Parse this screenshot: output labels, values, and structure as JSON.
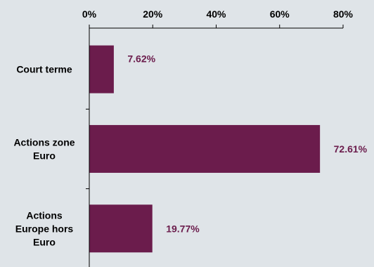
{
  "colors": {
    "background": "#dfe4e8",
    "bar": "#6b1c4c",
    "data_label": "#6b1c4c",
    "axis": "#000000"
  },
  "chart_data": {
    "type": "bar",
    "orientation": "horizontal",
    "categories": [
      [
        "Court terme"
      ],
      [
        "Actions zone",
        "Euro"
      ],
      [
        "Actions",
        "Europe hors",
        "Euro"
      ]
    ],
    "values": [
      7.62,
      72.61,
      19.77
    ],
    "data_labels": [
      "7.62%",
      "72.61%",
      "19.77%"
    ],
    "xlim": [
      0,
      80
    ],
    "x_ticks": [
      0,
      20,
      40,
      60,
      80
    ],
    "x_tick_labels": [
      "0%",
      "20%",
      "40%",
      "60%",
      "80%"
    ],
    "x_axis_position": "top",
    "grid": false,
    "legend": "none",
    "title": "",
    "xlabel": "",
    "ylabel": ""
  }
}
